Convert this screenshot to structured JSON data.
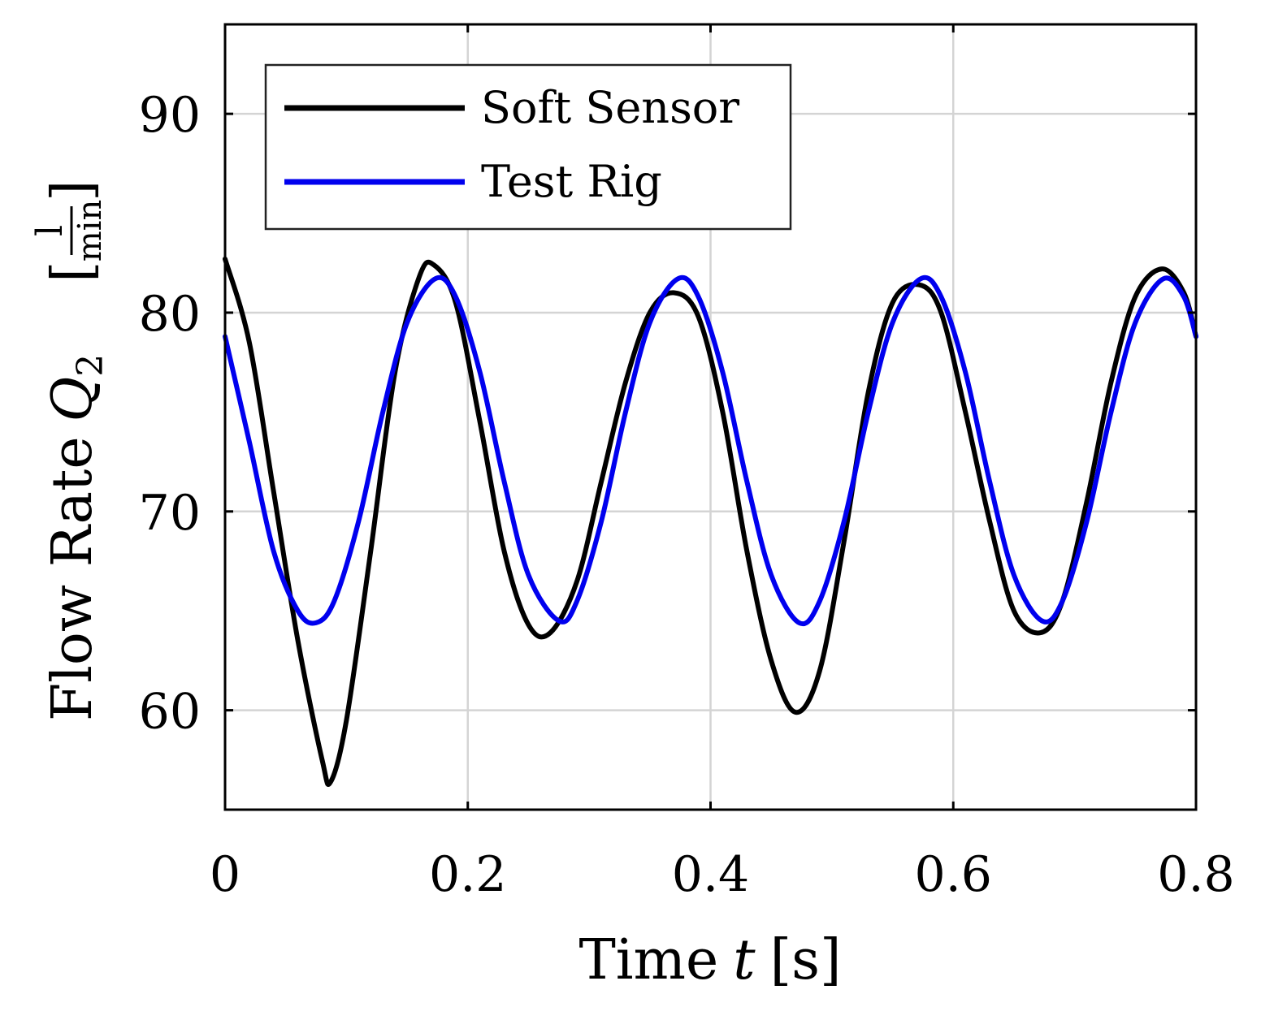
{
  "chart_data": {
    "type": "line",
    "title": "",
    "xlabel": "Time",
    "xlabel_var": "t",
    "xlabel_unit": "[s]",
    "ylabel": "Flow Rate",
    "ylabel_var": "Q",
    "ylabel_sub": "2",
    "ylabel_unit_num": "l",
    "ylabel_unit_den": "min",
    "xlim": [
      0,
      0.8
    ],
    "ylim": [
      55,
      94.5
    ],
    "xticks": [
      0,
      0.2,
      0.4,
      0.6,
      0.8
    ],
    "xtick_labels": [
      "0",
      "0.2",
      "0.4",
      "0.6",
      "0.8"
    ],
    "yticks": [
      60,
      70,
      80,
      90
    ],
    "ytick_labels": [
      "60",
      "70",
      "80",
      "90"
    ],
    "grid": true,
    "legend_position": "top-left",
    "series": [
      {
        "name": "Soft Sensor",
        "color": "#000000",
        "x": [
          0,
          0.02,
          0.04,
          0.06,
          0.08,
          0.087,
          0.1,
          0.12,
          0.14,
          0.16,
          0.172,
          0.19,
          0.21,
          0.23,
          0.25,
          0.268,
          0.29,
          0.31,
          0.33,
          0.35,
          0.37,
          0.39,
          0.41,
          0.43,
          0.45,
          0.47,
          0.49,
          0.51,
          0.53,
          0.55,
          0.572,
          0.59,
          0.61,
          0.63,
          0.65,
          0.672,
          0.69,
          0.71,
          0.73,
          0.75,
          0.772,
          0.79,
          0.8
        ],
        "values": [
          82.7,
          78.5,
          71.0,
          63.5,
          57.5,
          56.4,
          59.5,
          68.0,
          77.0,
          81.8,
          82.4,
          80.5,
          74.5,
          68.0,
          64.3,
          63.9,
          66.5,
          71.5,
          76.5,
          80.0,
          81.0,
          79.8,
          75.0,
          68.0,
          62.5,
          59.9,
          62.0,
          68.5,
          76.0,
          80.5,
          81.4,
          80.0,
          75.0,
          69.5,
          65.0,
          63.9,
          65.5,
          70.5,
          76.5,
          80.8,
          82.2,
          81.0,
          78.8
        ]
      },
      {
        "name": "Test Rig",
        "color": "#0000ee",
        "x": [
          0,
          0.02,
          0.04,
          0.06,
          0.075,
          0.09,
          0.11,
          0.13,
          0.15,
          0.173,
          0.19,
          0.21,
          0.23,
          0.25,
          0.275,
          0.29,
          0.31,
          0.33,
          0.35,
          0.373,
          0.39,
          0.41,
          0.43,
          0.45,
          0.473,
          0.49,
          0.51,
          0.53,
          0.55,
          0.573,
          0.59,
          0.61,
          0.63,
          0.65,
          0.673,
          0.69,
          0.71,
          0.73,
          0.75,
          0.773,
          0.79,
          0.8
        ],
        "values": [
          78.8,
          73.5,
          68.0,
          65.0,
          64.4,
          65.5,
          69.5,
          75.0,
          79.5,
          81.7,
          80.8,
          77.0,
          71.5,
          66.8,
          64.5,
          65.5,
          69.5,
          75.0,
          79.5,
          81.7,
          80.8,
          77.0,
          71.5,
          66.8,
          64.4,
          65.5,
          69.5,
          75.0,
          79.5,
          81.7,
          80.8,
          77.0,
          71.5,
          66.8,
          64.5,
          65.5,
          69.5,
          75.0,
          79.5,
          81.7,
          80.8,
          78.8
        ]
      }
    ]
  }
}
